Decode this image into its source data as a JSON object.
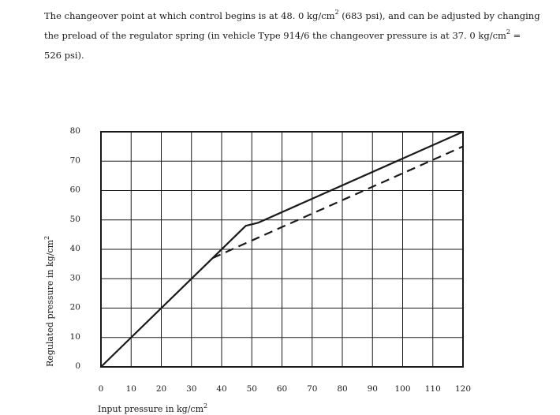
{
  "paragraph": {
    "line1_a": "The changeover point at which control begins is at 48. 0 kg/cm",
    "line1_sup": "2",
    "line1_b": " (683 psi), and can be adjusted by changing",
    "line2_a": "the preload of the regulator spring (in vehicle Type 914/6 the changeover pressure is at 37. 0 kg/cm",
    "line2_sup": "2",
    "line2_b": " =",
    "line3": "526 psi)."
  },
  "chart_data": {
    "type": "line",
    "xlabel": "Input pressure in kg/cm",
    "xlabel_sup": "2",
    "ylabel": "Regulated pressure in kg/cm",
    "ylabel_sup": "2",
    "xlim": [
      0,
      120
    ],
    "ylim": [
      0,
      80
    ],
    "x_ticks": [
      0,
      10,
      20,
      30,
      40,
      50,
      60,
      70,
      80,
      90,
      100,
      110,
      120
    ],
    "y_ticks": [
      0,
      10,
      20,
      30,
      40,
      50,
      60,
      70,
      80
    ],
    "grid": true,
    "series": [
      {
        "style": "solid",
        "points": [
          [
            0,
            0
          ],
          [
            48,
            48
          ],
          [
            52,
            49
          ],
          [
            120,
            80
          ]
        ]
      },
      {
        "style": "dashed",
        "points": [
          [
            37,
            37
          ],
          [
            50,
            43
          ],
          [
            120,
            75
          ]
        ]
      }
    ]
  }
}
